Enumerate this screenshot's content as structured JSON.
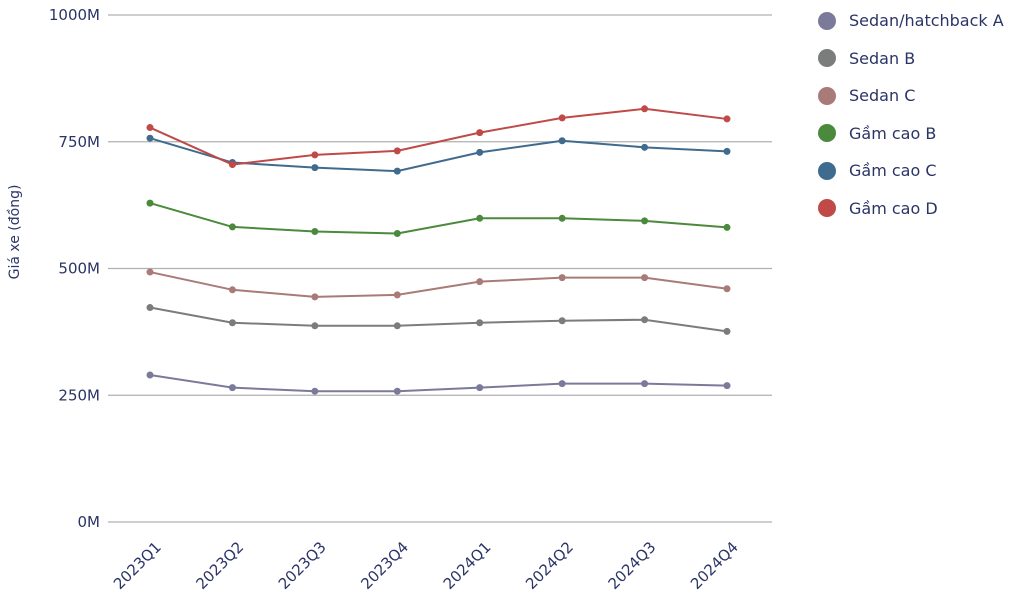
{
  "chart_data": {
    "type": "line",
    "title": "",
    "xlabel": "",
    "ylabel": "Giá xe (đồng)",
    "categories": [
      "2023Q1",
      "2023Q2",
      "2023Q3",
      "2023Q4",
      "2024Q1",
      "2024Q2",
      "2024Q3",
      "2024Q4"
    ],
    "yticks": [
      0,
      250,
      500,
      750,
      1000
    ],
    "ytick_labels": [
      "0M",
      "250M",
      "500M",
      "750M",
      "1000M"
    ],
    "ylim": [
      0,
      1000
    ],
    "grid": true,
    "legend_position": "top-right",
    "series": [
      {
        "name": "Sedan/hatchback A",
        "color": "#7b7a9a",
        "values": [
          290,
          265,
          258,
          258,
          265,
          273,
          273,
          269
        ]
      },
      {
        "name": "Sedan B",
        "color": "#7a7d7b",
        "values": [
          423,
          393,
          387,
          387,
          393,
          397,
          399,
          376
        ]
      },
      {
        "name": "Sedan C",
        "color": "#a87b78",
        "values": [
          493,
          458,
          444,
          448,
          474,
          482,
          482,
          460
        ]
      },
      {
        "name": "Gầm cao B",
        "color": "#4b8a3c",
        "values": [
          629,
          582,
          573,
          569,
          599,
          599,
          594,
          581
        ]
      },
      {
        "name": "Gầm cao C",
        "color": "#3f6b8f",
        "values": [
          757,
          709,
          699,
          692,
          729,
          752,
          739,
          731
        ]
      },
      {
        "name": "Gầm cao D",
        "color": "#bf4a47",
        "values": [
          778,
          705,
          724,
          732,
          768,
          797,
          815,
          795
        ]
      }
    ]
  }
}
